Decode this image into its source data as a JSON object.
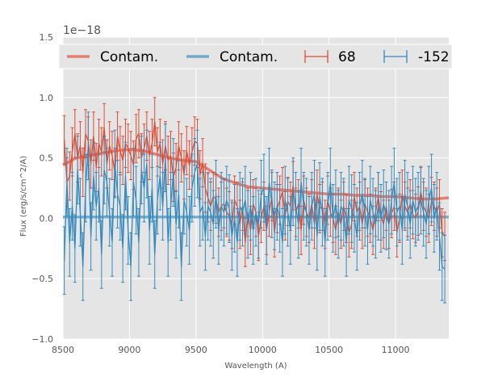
{
  "chart_data": {
    "type": "line",
    "title": "",
    "xlabel": "Wavelength (A)",
    "ylabel": "Flux (erg/s/cm^2/A)",
    "offset_label": "1e−18",
    "xlim": [
      8500,
      11400
    ],
    "ylim": [
      -1.0,
      1.5
    ],
    "x_ticks": [
      8500,
      9000,
      9500,
      10000,
      10500,
      11000
    ],
    "y_ticks": [
      -1.0,
      -0.5,
      0.0,
      0.5,
      1.0,
      1.5
    ],
    "y_tick_labels": [
      "−1.0",
      "−0.5",
      "0.0",
      "0.5",
      "1.0",
      "1.5"
    ],
    "grid": true,
    "legend_position": "top",
    "colors": {
      "red": "#e24a33",
      "blue": "#348abd",
      "background": "#e5e5e5"
    },
    "contamination": [
      {
        "name": "Contam.",
        "color": "#e24a33",
        "x": [
          8500,
          8600,
          8700,
          8800,
          8900,
          9000,
          9100,
          9200,
          9300,
          9400,
          9500,
          9600,
          9700,
          9800,
          9900,
          10000,
          10100,
          10200,
          10300,
          10400,
          10500,
          10600,
          10700,
          10800,
          10900,
          11000,
          11100,
          11200,
          11300,
          11400
        ],
        "y": [
          0.44,
          0.5,
          0.52,
          0.54,
          0.56,
          0.57,
          0.56,
          0.53,
          0.5,
          0.48,
          0.47,
          0.4,
          0.33,
          0.29,
          0.26,
          0.25,
          0.24,
          0.23,
          0.22,
          0.21,
          0.2,
          0.2,
          0.19,
          0.19,
          0.18,
          0.18,
          0.17,
          0.16,
          0.16,
          0.17
        ]
      },
      {
        "name": "Contam.",
        "color": "#348abd",
        "x": [
          8500,
          9000,
          9500,
          10000,
          10500,
          11000,
          11400
        ],
        "y": [
          0.01,
          0.01,
          0.01,
          0.01,
          0.01,
          0.01,
          0.01
        ]
      }
    ],
    "series": [
      {
        "name": "68",
        "color": "#e24a33",
        "x_start": 8510,
        "x_step": 20,
        "y": [
          0.65,
          0.3,
          0.35,
          0.55,
          0.7,
          0.5,
          0.6,
          0.38,
          0.7,
          0.64,
          0.45,
          0.68,
          0.42,
          0.62,
          0.55,
          0.75,
          0.45,
          0.6,
          0.52,
          0.38,
          0.68,
          0.56,
          0.48,
          0.62,
          0.58,
          0.52,
          0.44,
          0.66,
          0.7,
          0.5,
          0.58,
          0.68,
          0.52,
          0.62,
          0.8,
          0.55,
          0.62,
          0.45,
          0.6,
          0.48,
          0.52,
          0.34,
          0.42,
          0.6,
          0.5,
          0.36,
          0.56,
          0.44,
          0.55,
          0.64,
          0.62,
          0.36,
          0.46,
          0.25,
          0.17,
          0.1,
          0.18,
          0.16,
          0.05,
          0.1,
          0.12,
          0.05,
          0.02,
          -0.05,
          0.15,
          0.1,
          -0.05,
          0.1,
          -0.2,
          0.05,
          -0.1,
          0.12,
          0.05,
          -0.15,
          0.0,
          0.1,
          -0.1,
          0.05,
          0.18,
          -0.12,
          0.08,
          0.15,
          0.22,
          0.02,
          0.14,
          0.1,
          0.27,
          0.05,
          0.12,
          -0.1,
          0.15,
          0.05,
          0.0,
          0.12,
          -0.05,
          0.2,
          0.08,
          0.1,
          -0.05,
          0.15,
          0.05,
          0.0,
          -0.1,
          0.05,
          -0.05,
          0.1,
          0.0,
          -0.12,
          -0.05,
          0.18,
          0.05,
          0.1,
          -0.05,
          0.12,
          0.05,
          0.0,
          -0.1,
          0.05,
          0.18,
          0.02,
          -0.05,
          0.1,
          -0.05,
          0.04,
          0.1,
          -0.12,
          0.0,
          0.2,
          0.1,
          0.05,
          0.12,
          0.03,
          0.0,
          0.06,
          0.22,
          0.1,
          0.05,
          0.0,
          0.14,
          0.1,
          0.05,
          0.12,
          -0.12,
          -0.15
        ],
        "err": 0.2
      },
      {
        "name": "-152",
        "color": "#348abd",
        "x_start": 8510,
        "x_step": 20,
        "y": [
          -0.35,
          0.3,
          -0.2,
          0.1,
          -0.25,
          0.4,
          0.05,
          -0.4,
          0.25,
          0.6,
          -0.15,
          0.35,
          0.1,
          0.25,
          -0.3,
          0.4,
          0.3,
          0.05,
          -0.2,
          0.45,
          0.2,
          0.1,
          -0.25,
          0.35,
          -0.1,
          -0.4,
          0.3,
          0.15,
          -0.2,
          0.4,
          0.25,
          0.45,
          -0.1,
          0.25,
          -0.3,
          0.15,
          0.35,
          0.1,
          0.5,
          -0.2,
          0.1,
          0.38,
          -0.05,
          0.2,
          -0.4,
          0.15,
          0.05,
          -0.1,
          0.25,
          0.38,
          0.45,
          0.05,
          0.1,
          -0.15,
          0.1,
          0.05,
          -0.05,
          0.2,
          -0.1,
          0.1,
          0.05,
          0.15,
          0.08,
          -0.15,
          0.0,
          -0.2,
          0.1,
          0.05,
          0.15,
          -0.05,
          0.1,
          -0.1,
          0.05,
          -0.05,
          0.2,
          0.25,
          -0.1,
          0.3,
          0.12,
          0.02,
          0.1,
          0.0,
          -0.2,
          0.15,
          0.05,
          -0.1,
          0.22,
          0.1,
          -0.05,
          0.3,
          0.1,
          0.05,
          -0.1,
          0.1,
          0.2,
          -0.15,
          0.18,
          0.05,
          -0.2,
          0.1,
          0.3,
          0.0,
          0.12,
          -0.05,
          0.1,
          0.05,
          -0.2,
          0.15,
          0.08,
          0.0,
          -0.15,
          0.1,
          0.2,
          0.05,
          -0.1,
          0.15,
          0.05,
          -0.05,
          0.1,
          0.0,
          0.12,
          0.02,
          -0.05,
          0.15,
          0.3,
          0.05,
          0.1,
          -0.1,
          0.2,
          0.1,
          -0.05,
          0.15,
          0.05,
          0.1,
          0.15,
          0.05,
          -0.05,
          0.15,
          0.25,
          0.0,
          0.1,
          -0.15,
          -0.4,
          -0.42
        ],
        "err": 0.28
      }
    ]
  }
}
